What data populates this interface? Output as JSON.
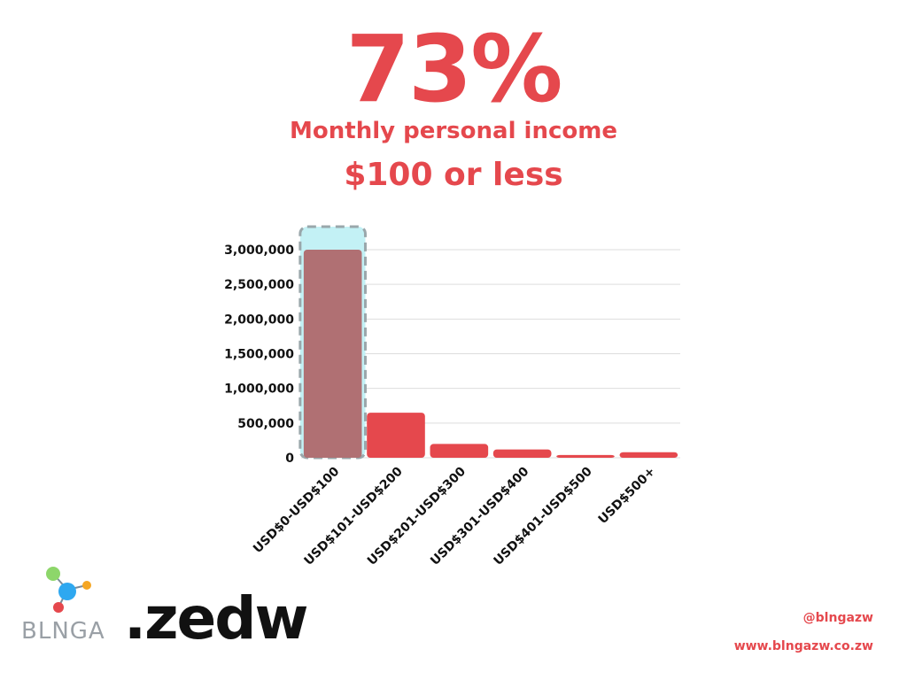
{
  "headline": {
    "value": "73%",
    "line1": "Monthly personal income",
    "line2": "$100 or less"
  },
  "brand": {
    "logo_text": "BLNGA",
    "wordmark": ".zedw",
    "handle": "@blngazw",
    "website": "www.blngazw.co.zw"
  },
  "colors": {
    "accent": "#e5484d",
    "highlight_bar": "#b07073",
    "highlight_box": "#c3f1f5"
  },
  "chart_data": {
    "type": "bar",
    "categories": [
      "USD$0-USD$100",
      "USD$101-USD$200",
      "USD$201-USD$300",
      "USD$301-USD$400",
      "USD$401-USD$500",
      "USD$500+"
    ],
    "values": [
      3000000,
      650000,
      200000,
      120000,
      40000,
      80000
    ],
    "ylim": [
      0,
      3000000
    ],
    "yticks": [
      0,
      500000,
      1000000,
      1500000,
      2000000,
      2500000,
      3000000
    ],
    "ytick_labels": [
      "0",
      "500,000",
      "1,000,000",
      "1,500,000",
      "2,000,000",
      "2,500,000",
      "3,000,000"
    ],
    "highlight_index": 0,
    "grid": true
  }
}
